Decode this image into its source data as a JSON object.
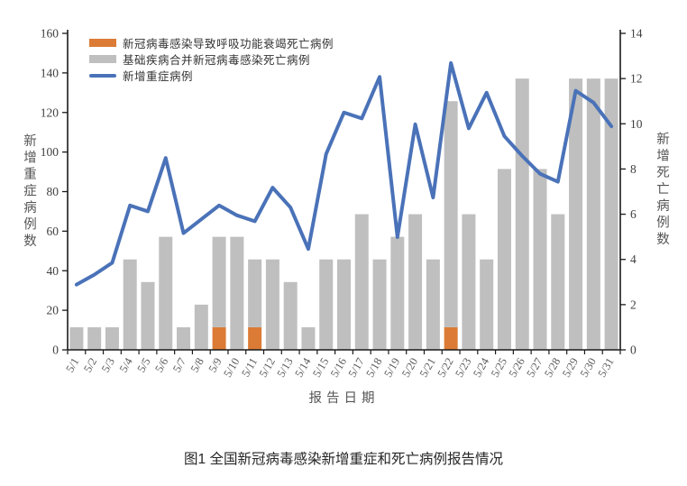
{
  "figure": {
    "caption": "图1 全国新冠病毒感染新增重症和死亡病例报告情况"
  },
  "legend": {
    "items": [
      {
        "label": "新冠病毒感染导致呼吸功能衰竭死亡病例",
        "swatch": "bar",
        "color": "#DB7B35"
      },
      {
        "label": "基础疾病合并新冠病毒感染死亡病例",
        "swatch": "bar",
        "color": "#BFBFBF"
      },
      {
        "label": "新增重症病例",
        "swatch": "line",
        "color": "#4A72B8"
      }
    ]
  },
  "chart_data": {
    "type": "combo_stacked_bar_line",
    "title": "图1 全国新冠病毒感染新增重症和死亡病例报告情况",
    "xlabel": "报告日期",
    "categories": [
      "5/1",
      "5/2",
      "5/3",
      "5/4",
      "5/5",
      "5/6",
      "5/7",
      "5/8",
      "5/9",
      "5/10",
      "5/11",
      "5/12",
      "5/13",
      "5/14",
      "5/15",
      "5/16",
      "5/17",
      "5/18",
      "5/19",
      "5/20",
      "5/21",
      "5/22",
      "5/23",
      "5/24",
      "5/25",
      "5/26",
      "5/27",
      "5/28",
      "5/29",
      "5/30",
      "5/31"
    ],
    "series": [
      {
        "name": "新冠病毒感染导致呼吸功能衰竭死亡病例",
        "type": "bar",
        "stack": "deaths",
        "axis": "right",
        "color": "#DB7B35",
        "values": [
          0,
          0,
          0,
          0,
          0,
          0,
          0,
          0,
          1,
          0,
          1,
          0,
          0,
          0,
          0,
          0,
          0,
          0,
          0,
          0,
          0,
          1,
          0,
          0,
          0,
          0,
          0,
          0,
          0,
          0,
          0
        ]
      },
      {
        "name": "基础疾病合并新冠病毒感染死亡病例",
        "type": "bar",
        "stack": "deaths",
        "axis": "right",
        "color": "#BFBFBF",
        "values": [
          1,
          1,
          1,
          4,
          3,
          5,
          1,
          2,
          4,
          5,
          3,
          4,
          3,
          1,
          4,
          4,
          6,
          4,
          5,
          6,
          4,
          10,
          6,
          4,
          8,
          12,
          8,
          6,
          12,
          12,
          12
        ]
      },
      {
        "name": "新增重症病例",
        "type": "line",
        "axis": "left",
        "color": "#4A72B8",
        "values": [
          33,
          38,
          44,
          73,
          70,
          97,
          59,
          66,
          73,
          68,
          65,
          82,
          72,
          51,
          99,
          120,
          117,
          138,
          57,
          114,
          77,
          145,
          112,
          130,
          108,
          98,
          89,
          85,
          131,
          125,
          113
        ]
      }
    ],
    "left_axis": {
      "title": "新增重症病例数",
      "min": 0,
      "max": 160,
      "step": 20
    },
    "right_axis": {
      "title": "新增死亡病例数",
      "min": 0,
      "max": 14,
      "step": 2
    },
    "x_axis": {
      "title": "报告日期",
      "tick_label_rotation": -60
    },
    "grid": false,
    "legend_position": "top-left-inside",
    "styles": {
      "axis_color": "#1a1a1a",
      "tick_label_color": "#404040",
      "x_tick_label_color": "#595959"
    }
  }
}
